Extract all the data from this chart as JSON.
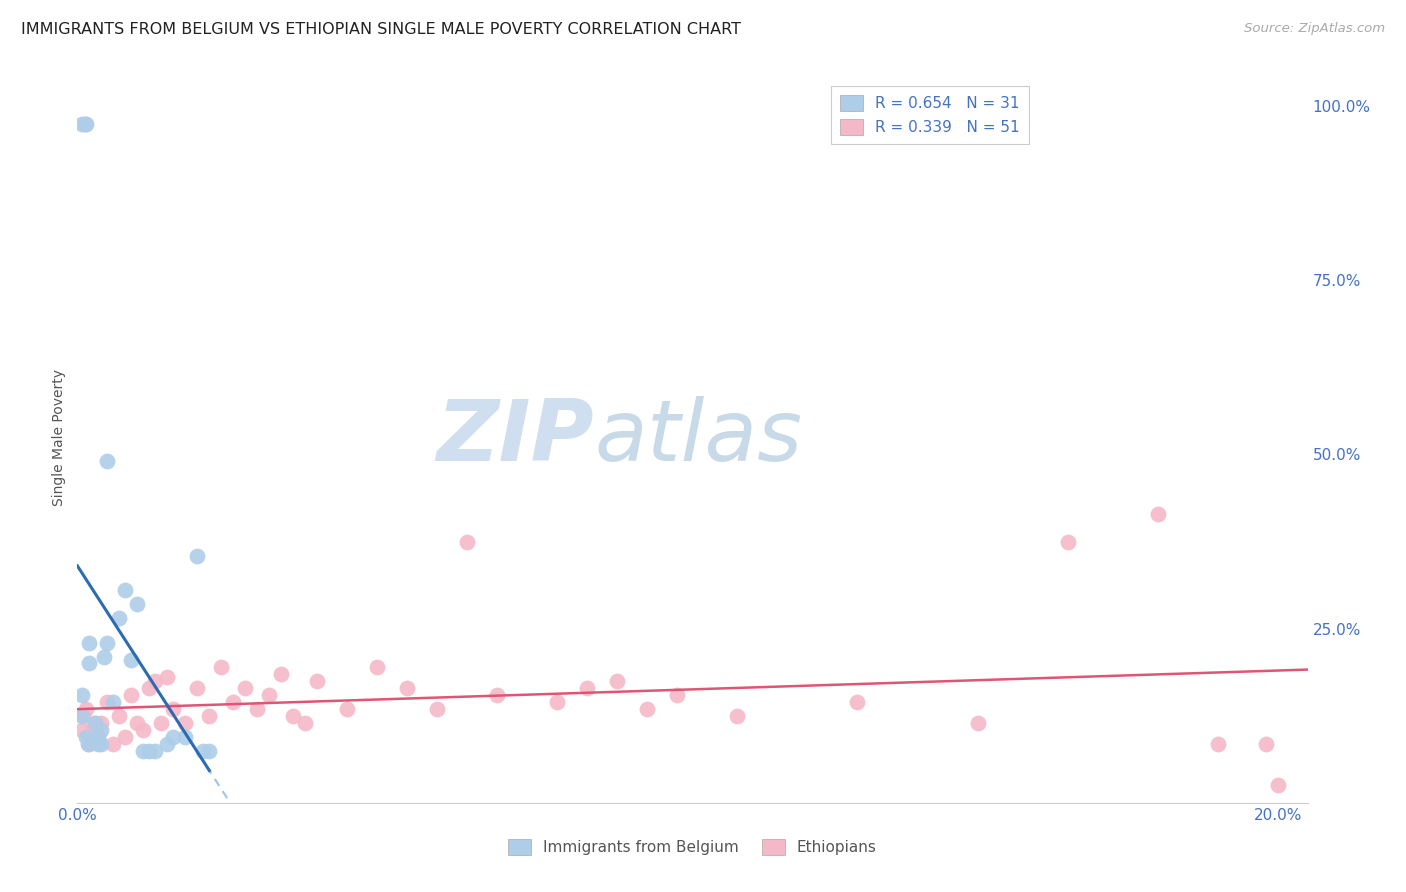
{
  "title": "IMMIGRANTS FROM BELGIUM VS ETHIOPIAN SINGLE MALE POVERTY CORRELATION CHART",
  "source": "Source: ZipAtlas.com",
  "ylabel": "Single Male Poverty",
  "right_yticks": [
    "100.0%",
    "75.0%",
    "50.0%",
    "25.0%"
  ],
  "right_ytick_vals": [
    1.0,
    0.75,
    0.5,
    0.25
  ],
  "legend_blue_r": "R = 0.654",
  "legend_blue_n": "N = 31",
  "legend_pink_r": "R = 0.339",
  "legend_pink_n": "N = 51",
  "watermark_zip": "ZIP",
  "watermark_atlas": "atlas",
  "blue_color": "#aecde8",
  "pink_color": "#f5b8c8",
  "blue_line_color": "#2b6cb0",
  "pink_line_color": "#e05575",
  "blue_line_dashed_color": "#a0c4e8",
  "axis_label_color": "#4472c4",
  "legend_text_color": "#4472c4",
  "watermark_zip_color": "#d0dff0",
  "watermark_atlas_color": "#c8dae8",
  "blue_scatter": {
    "x": [
      0.0008,
      0.0008,
      0.0015,
      0.0018,
      0.002,
      0.002,
      0.003,
      0.0032,
      0.0035,
      0.004,
      0.004,
      0.0045,
      0.005,
      0.005,
      0.006,
      0.007,
      0.008,
      0.009,
      0.01,
      0.011,
      0.012,
      0.013,
      0.015,
      0.016,
      0.018,
      0.02,
      0.021,
      0.022,
      0.0008,
      0.0012,
      0.0015
    ],
    "y": [
      0.155,
      0.125,
      0.095,
      0.085,
      0.2,
      0.23,
      0.115,
      0.095,
      0.085,
      0.105,
      0.085,
      0.21,
      0.49,
      0.23,
      0.145,
      0.265,
      0.305,
      0.205,
      0.285,
      0.075,
      0.075,
      0.075,
      0.085,
      0.095,
      0.095,
      0.355,
      0.075,
      0.075,
      0.975,
      0.975,
      0.975
    ]
  },
  "pink_scatter": {
    "x": [
      0.0008,
      0.001,
      0.0015,
      0.002,
      0.0025,
      0.003,
      0.0035,
      0.004,
      0.005,
      0.006,
      0.007,
      0.008,
      0.009,
      0.01,
      0.011,
      0.012,
      0.013,
      0.014,
      0.015,
      0.016,
      0.018,
      0.02,
      0.022,
      0.024,
      0.026,
      0.028,
      0.03,
      0.032,
      0.034,
      0.036,
      0.038,
      0.04,
      0.045,
      0.05,
      0.055,
      0.06,
      0.065,
      0.07,
      0.08,
      0.085,
      0.09,
      0.095,
      0.1,
      0.11,
      0.13,
      0.15,
      0.165,
      0.18,
      0.19,
      0.198,
      0.2
    ],
    "y": [
      0.105,
      0.125,
      0.135,
      0.085,
      0.105,
      0.115,
      0.095,
      0.115,
      0.145,
      0.085,
      0.125,
      0.095,
      0.155,
      0.115,
      0.105,
      0.165,
      0.175,
      0.115,
      0.18,
      0.135,
      0.115,
      0.165,
      0.125,
      0.195,
      0.145,
      0.165,
      0.135,
      0.155,
      0.185,
      0.125,
      0.115,
      0.175,
      0.135,
      0.195,
      0.165,
      0.135,
      0.375,
      0.155,
      0.145,
      0.165,
      0.175,
      0.135,
      0.155,
      0.125,
      0.145,
      0.115,
      0.375,
      0.415,
      0.085,
      0.085,
      0.025
    ]
  },
  "xlim": [
    0.0,
    0.205
  ],
  "ylim": [
    0.0,
    1.05
  ],
  "figsize": [
    14.06,
    8.92
  ],
  "dpi": 100
}
